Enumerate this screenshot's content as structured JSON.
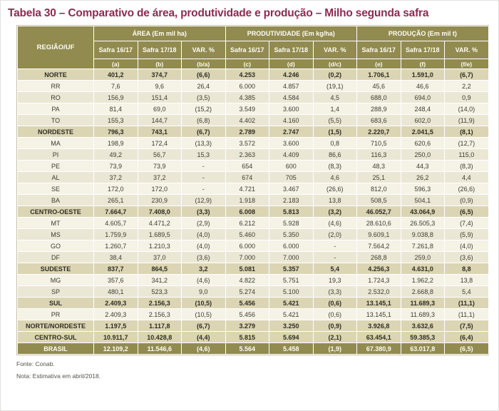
{
  "title": "Tabela 30 – Comparativo de área, produtividade e produção – Milho segunda safra",
  "table": {
    "region_header": "REGIÃO/UF",
    "groups": [
      {
        "label": "ÁREA (Em mil ha)"
      },
      {
        "label": "PRODUTIVIDADE (Em kg/ha)"
      },
      {
        "label": "PRODUÇÃO (Em mil t)"
      }
    ],
    "sub_headers": [
      "Safra 16/17",
      "Safra 17/18",
      "VAR. %",
      "Safra 16/17",
      "Safra 17/18",
      "VAR. %",
      "Safra 16/17",
      "Safra 17/18",
      "VAR. %"
    ],
    "letter_row": [
      "(a)",
      "(b)",
      "(b/a)",
      "(c)",
      "(d)",
      "(d/c)",
      "(e)",
      "(f)",
      "(f/e)"
    ],
    "rows": [
      {
        "name": "NORTE",
        "level": "region",
        "values": [
          "401,2",
          "374,7",
          "(6,6)",
          "4.253",
          "4.246",
          "(0,2)",
          "1.706,1",
          "1.591,0",
          "(6,7)"
        ]
      },
      {
        "name": "RR",
        "level": "state",
        "values": [
          "7,6",
          "9,6",
          "26,4",
          "6.000",
          "4.857",
          "(19,1)",
          "45,6",
          "46,6",
          "2,2"
        ]
      },
      {
        "name": "RO",
        "level": "state",
        "values": [
          "156,9",
          "151,4",
          "(3,5)",
          "4.385",
          "4.584",
          "4,5",
          "688,0",
          "694,0",
          "0,9"
        ]
      },
      {
        "name": "PA",
        "level": "state",
        "values": [
          "81,4",
          "69,0",
          "(15,2)",
          "3.549",
          "3.600",
          "1,4",
          "288,9",
          "248,4",
          "(14,0)"
        ]
      },
      {
        "name": "TO",
        "level": "state",
        "values": [
          "155,3",
          "144,7",
          "(6,8)",
          "4.402",
          "4.160",
          "(5,5)",
          "683,6",
          "602,0",
          "(11,9)"
        ]
      },
      {
        "name": "NORDESTE",
        "level": "region",
        "values": [
          "796,3",
          "743,1",
          "(6,7)",
          "2.789",
          "2.747",
          "(1,5)",
          "2.220,7",
          "2.041,5",
          "(8,1)"
        ]
      },
      {
        "name": "MA",
        "level": "state",
        "values": [
          "198,9",
          "172,4",
          "(13,3)",
          "3.572",
          "3.600",
          "0,8",
          "710,5",
          "620,6",
          "(12,7)"
        ]
      },
      {
        "name": "PI",
        "level": "state",
        "values": [
          "49,2",
          "56,7",
          "15,3",
          "2.363",
          "4.409",
          "86,6",
          "116,3",
          "250,0",
          "115,0"
        ]
      },
      {
        "name": "PE",
        "level": "state",
        "values": [
          "73,9",
          "73,9",
          "-",
          "654",
          "600",
          "(8,3)",
          "48,3",
          "44,3",
          "(8,3)"
        ]
      },
      {
        "name": "AL",
        "level": "state",
        "values": [
          "37,2",
          "37,2",
          "-",
          "674",
          "705",
          "4,6",
          "25,1",
          "26,2",
          "4,4"
        ]
      },
      {
        "name": "SE",
        "level": "state",
        "values": [
          "172,0",
          "172,0",
          "-",
          "4.721",
          "3.467",
          "(26,6)",
          "812,0",
          "596,3",
          "(26,6)"
        ]
      },
      {
        "name": "BA",
        "level": "state",
        "values": [
          "265,1",
          "230,9",
          "(12,9)",
          "1.918",
          "2.183",
          "13,8",
          "508,5",
          "504,1",
          "(0,9)"
        ]
      },
      {
        "name": "CENTRO-OESTE",
        "level": "region",
        "values": [
          "7.664,7",
          "7.408,0",
          "(3,3)",
          "6.008",
          "5.813",
          "(3,2)",
          "46.052,7",
          "43.064,9",
          "(6,5)"
        ]
      },
      {
        "name": "MT",
        "level": "state",
        "values": [
          "4.605,7",
          "4.471,2",
          "(2,9)",
          "6.212",
          "5.928",
          "(4,6)",
          "28.610,6",
          "26.505,3",
          "(7,4)"
        ]
      },
      {
        "name": "MS",
        "level": "state",
        "values": [
          "1.759,9",
          "1.689,5",
          "(4,0)",
          "5.460",
          "5.350",
          "(2,0)",
          "9.609,1",
          "9.038,8",
          "(5,9)"
        ]
      },
      {
        "name": "GO",
        "level": "state",
        "values": [
          "1.260,7",
          "1.210,3",
          "(4,0)",
          "6.000",
          "6.000",
          "-",
          "7.564,2",
          "7.261,8",
          "(4,0)"
        ]
      },
      {
        "name": "DF",
        "level": "state",
        "values": [
          "38,4",
          "37,0",
          "(3,6)",
          "7.000",
          "7.000",
          "-",
          "268,8",
          "259,0",
          "(3,6)"
        ]
      },
      {
        "name": "SUDESTE",
        "level": "region",
        "values": [
          "837,7",
          "864,5",
          "3,2",
          "5.081",
          "5.357",
          "5,4",
          "4.256,3",
          "4.631,0",
          "8,8"
        ]
      },
      {
        "name": "MG",
        "level": "state",
        "values": [
          "357,6",
          "341,2",
          "(4,6)",
          "4.822",
          "5.751",
          "19,3",
          "1.724,3",
          "1.962,2",
          "13,8"
        ]
      },
      {
        "name": "SP",
        "level": "state",
        "values": [
          "480,1",
          "523,3",
          "9,0",
          "5.274",
          "5.100",
          "(3,3)",
          "2.532,0",
          "2.668,8",
          "5,4"
        ]
      },
      {
        "name": "SUL",
        "level": "region",
        "values": [
          "2.409,3",
          "2.156,3",
          "(10,5)",
          "5.456",
          "5.421",
          "(0,6)",
          "13.145,1",
          "11.689,3",
          "(11,1)"
        ]
      },
      {
        "name": "PR",
        "level": "state",
        "values": [
          "2.409,3",
          "2.156,3",
          "(10,5)",
          "5.456",
          "5.421",
          "(0,6)",
          "13.145,1",
          "11.689,3",
          "(11,1)"
        ]
      },
      {
        "name": "NORTE/NORDESTE",
        "level": "region",
        "values": [
          "1.197,5",
          "1.117,8",
          "(6,7)",
          "3.279",
          "3.250",
          "(0,9)",
          "3.926,8",
          "3.632,6",
          "(7,5)"
        ]
      },
      {
        "name": "CENTRO-SUL",
        "level": "region",
        "values": [
          "10.911,7",
          "10.428,8",
          "(4,4)",
          "5.815",
          "5.694",
          "(2,1)",
          "63.454,1",
          "59.385,3",
          "(6,4)"
        ]
      },
      {
        "name": "BRASIL",
        "level": "brasil",
        "values": [
          "12.109,2",
          "11.546,6",
          "(4,6)",
          "5.564",
          "5.458",
          "(1,9)",
          "67.380,9",
          "63.017,8",
          "(6,5)"
        ]
      }
    ]
  },
  "footer": {
    "source": "Fonte: Conab.",
    "note": "Nota: Estimativa em abril/2018."
  },
  "colors": {
    "header_bg": "#928B50",
    "region_row_bg": "#DBD5B4",
    "state_row_bg": "#F5F2E6",
    "state_row_alt_bg": "#EBE7D5",
    "brasil_row_bg": "#928B50",
    "title_color": "#8D2B52"
  }
}
